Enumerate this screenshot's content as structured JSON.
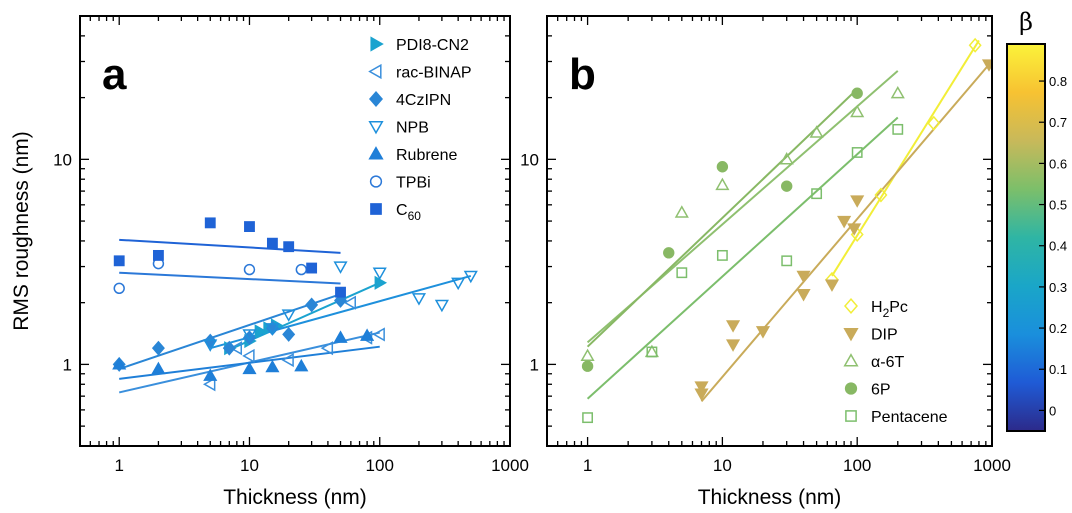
{
  "chart_data": [
    {
      "panel": "a",
      "type": "scatter",
      "xlabel": "Thickness (nm)",
      "ylabel": "RMS roughness (nm)",
      "xscale": "log",
      "yscale": "log",
      "xlim": [
        0.5,
        1000
      ],
      "ylim": [
        0.4,
        50
      ],
      "xticks": [
        1,
        10,
        100,
        1000
      ],
      "xtick_labels": [
        "1",
        "10",
        "100",
        "1000"
      ],
      "yticks": [
        1,
        10
      ],
      "ytick_labels": [
        "1",
        "10"
      ],
      "grid": false,
      "legend_position": "top-right",
      "series": [
        {
          "name": "PDI8-CN2",
          "marker": "triangle-right",
          "filled": true,
          "color": "#1ba3cf",
          "x": [
            7,
            10,
            12,
            14,
            16,
            100
          ],
          "y": [
            1.2,
            1.3,
            1.45,
            1.5,
            1.55,
            2.5
          ],
          "fit": [
            [
              7,
              1.18
            ],
            [
              100,
              2.5
            ]
          ]
        },
        {
          "name": "rac-BINAP",
          "marker": "triangle-left",
          "filled": false,
          "color": "#3a8fdc",
          "x": [
            5,
            8,
            10,
            20,
            40,
            60,
            80,
            100
          ],
          "y": [
            0.8,
            1.2,
            1.1,
            1.05,
            1.2,
            2.0,
            1.35,
            1.4
          ],
          "fit": [
            [
              1,
              0.73
            ],
            [
              100,
              1.43
            ]
          ]
        },
        {
          "name": "4CzIPN",
          "marker": "diamond",
          "filled": true,
          "color": "#2a86d6",
          "x": [
            1,
            2,
            5,
            7,
            10,
            15,
            20,
            30,
            50
          ],
          "y": [
            1.0,
            1.2,
            1.3,
            1.2,
            1.35,
            1.5,
            1.4,
            1.95,
            2.05
          ],
          "fit": [
            [
              1,
              0.95
            ],
            [
              50,
              2.2
            ]
          ]
        },
        {
          "name": "NPB",
          "marker": "triangle-down",
          "filled": false,
          "color": "#1e90dc",
          "x": [
            5,
            10,
            15,
            20,
            50,
            100,
            200,
            300,
            400,
            500
          ],
          "y": [
            1.25,
            1.4,
            1.5,
            1.75,
            3.0,
            2.8,
            2.1,
            1.95,
            2.5,
            2.7
          ],
          "fit": [
            [
              5,
              1.2
            ],
            [
              500,
              2.7
            ]
          ]
        },
        {
          "name": "Rubrene",
          "marker": "triangle-up",
          "filled": true,
          "color": "#1f7fd8",
          "x": [
            1,
            2,
            5,
            10,
            15,
            25,
            50,
            80
          ],
          "y": [
            1.0,
            0.95,
            0.88,
            0.95,
            0.97,
            0.98,
            1.35,
            1.38
          ],
          "fit": [
            [
              1,
              0.85
            ],
            [
              100,
              1.22
            ]
          ]
        },
        {
          "name": "TPBi",
          "marker": "circle",
          "filled": false,
          "color": "#2b78d8",
          "x": [
            1,
            2,
            10,
            25
          ],
          "y": [
            2.35,
            3.1,
            2.9,
            2.9
          ],
          "fit": [
            [
              1,
              2.8
            ],
            [
              50,
              2.48
            ]
          ]
        },
        {
          "name": "C60",
          "marker": "square",
          "filled": true,
          "color": "#1f63d6",
          "x": [
            1,
            2,
            5,
            10,
            15,
            20,
            30,
            50
          ],
          "y": [
            3.2,
            3.4,
            4.9,
            4.7,
            3.9,
            3.75,
            2.95,
            2.25
          ],
          "fit": [
            [
              1,
              4.05
            ],
            [
              50,
              3.5
            ]
          ]
        }
      ]
    },
    {
      "panel": "b",
      "type": "scatter",
      "xlabel": "Thickness (nm)",
      "ylabel": "",
      "xscale": "log",
      "yscale": "log",
      "xlim": [
        0.5,
        1000
      ],
      "ylim": [
        0.4,
        50
      ],
      "xticks": [
        1,
        10,
        100,
        1000
      ],
      "xtick_labels": [
        "1",
        "10",
        "100",
        "1000"
      ],
      "yticks": [
        1,
        10
      ],
      "ytick_labels": [
        "1",
        "10"
      ],
      "grid": false,
      "legend_position": "bottom-right",
      "series": [
        {
          "name": "H2Pc",
          "marker": "diamond",
          "filled": false,
          "color": "#f2ee38",
          "x": [
            65,
            100,
            150,
            370,
            750
          ],
          "y": [
            2.6,
            4.3,
            6.7,
            15.0,
            36.0
          ],
          "fit": [
            [
              65,
              2.7
            ],
            [
              800,
              38.0
            ]
          ]
        },
        {
          "name": "DIP",
          "marker": "triangle-down",
          "filled": true,
          "color": "#c9ab5a",
          "x": [
            7,
            7,
            12,
            12,
            20,
            40,
            40,
            65,
            80,
            95,
            100,
            950
          ],
          "y": [
            0.78,
            0.72,
            1.55,
            1.25,
            1.45,
            2.7,
            2.2,
            2.45,
            5.0,
            4.6,
            6.3,
            29.0
          ],
          "fit": [
            [
              7,
              0.66
            ],
            [
              950,
              29.0
            ]
          ]
        },
        {
          "name": "α-6T",
          "marker": "triangle-up",
          "filled": false,
          "color": "#8fc070",
          "x": [
            1,
            3,
            5,
            10,
            30,
            50,
            100,
            200
          ],
          "y": [
            1.1,
            1.15,
            5.5,
            7.5,
            10.0,
            13.5,
            17.0,
            21.0
          ],
          "fit": [
            [
              1,
              1.28
            ],
            [
              200,
              27.0
            ]
          ]
        },
        {
          "name": "6P",
          "marker": "circle",
          "filled": true,
          "color": "#88b864",
          "x": [
            1,
            4,
            10,
            30,
            100
          ],
          "y": [
            0.98,
            3.5,
            9.2,
            7.4,
            21.0
          ],
          "fit": [
            [
              1,
              1.22
            ],
            [
              100,
              22.0
            ]
          ]
        },
        {
          "name": "Pentacene",
          "marker": "square",
          "filled": false,
          "color": "#7cbe6c",
          "x": [
            1,
            3,
            5,
            10,
            30,
            50,
            100,
            200
          ],
          "y": [
            0.55,
            1.15,
            2.8,
            3.4,
            3.2,
            6.8,
            10.8,
            14.0
          ],
          "fit": [
            [
              1,
              0.68
            ],
            [
              200,
              16.0
            ]
          ]
        }
      ]
    },
    {
      "panel": "colorbar",
      "type": "heatmap",
      "title": "β",
      "range": [
        -0.05,
        0.89
      ],
      "ticks": [
        0,
        0.1,
        0.2,
        0.3,
        0.4,
        0.5,
        0.6,
        0.7,
        0.8
      ],
      "tick_labels": [
        "0",
        "0.1",
        "0.2",
        "0.3",
        "0.4",
        "0.5",
        "0.6",
        "0.7",
        "0.8"
      ],
      "colormap_stops": [
        "#2c2a8a",
        "#1f5bd6",
        "#1a8fdc",
        "#1aa6c8",
        "#2fb5a4",
        "#7cbf6a",
        "#c8b95a",
        "#f7c232",
        "#fbf33a"
      ]
    }
  ],
  "panels": {
    "a": {
      "letter": "a"
    },
    "b": {
      "letter": "b"
    }
  }
}
